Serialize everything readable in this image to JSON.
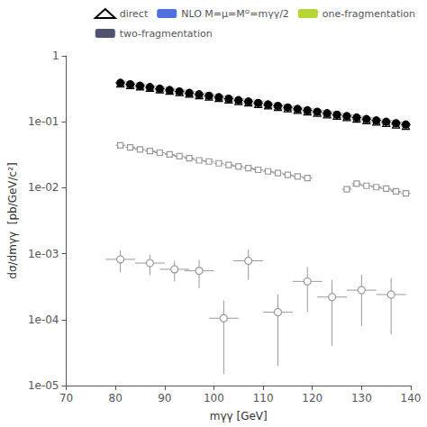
{
  "chart_data": {
    "type": "scatter",
    "xlabel": "mγγ [GeV]",
    "ylabel": "dσ/dmγγ  [pb/GeV/c²]",
    "log": "y",
    "xlim": [
      70,
      140
    ],
    "xticks": [
      70,
      80,
      90,
      100,
      110,
      120,
      130,
      140
    ],
    "ylim": [
      1e-05,
      1
    ],
    "yticks": [
      {
        "value": 1e-05,
        "label": "1e-05"
      },
      {
        "value": 0.0001,
        "label": "1e-04"
      },
      {
        "value": 0.001,
        "label": "1e-03"
      },
      {
        "value": 0.01,
        "label": "1e-02"
      },
      {
        "value": 0.1,
        "label": "1e-01"
      },
      1
    ],
    "grid": false,
    "legend": "upper right",
    "series": [
      {
        "type": "line",
        "color": "#bbbbbb",
        "line_style": "solid",
        "x": [
          81,
          83,
          85,
          87,
          89,
          91,
          93,
          95,
          97,
          99,
          101,
          103,
          105,
          107,
          109,
          111,
          113,
          115,
          117,
          119,
          121,
          123,
          125,
          127,
          129,
          131,
          133,
          135,
          137,
          139
        ],
        "values": [
          0.42,
          0.4,
          0.38,
          0.362,
          0.344,
          0.327,
          0.311,
          0.296,
          0.282,
          0.268,
          0.255,
          0.242,
          0.23,
          0.219,
          0.208,
          0.198,
          0.188,
          0.178,
          0.17,
          0.161,
          0.153,
          0.146,
          0.138,
          0.132,
          0.125,
          0.119,
          0.113,
          0.108,
          0.102,
          0.098
        ]
      },
      {
        "type": "line",
        "color": "#bbbbbb",
        "line_style": "solid",
        "x": [
          81,
          83,
          85,
          87,
          89,
          91,
          93,
          95,
          97,
          99,
          101,
          103,
          105,
          107,
          109,
          111,
          113,
          115,
          117,
          119,
          121,
          123,
          125,
          127,
          129,
          131,
          133,
          135,
          137,
          139
        ],
        "values": [
          0.362,
          0.345,
          0.328,
          0.312,
          0.297,
          0.282,
          0.268,
          0.255,
          0.243,
          0.231,
          0.219,
          0.208,
          0.198,
          0.188,
          0.179,
          0.17,
          0.161,
          0.153,
          0.145,
          0.138,
          0.131,
          0.125,
          0.118,
          0.112,
          0.107,
          0.102,
          0.097,
          0.092,
          0.088,
          0.084
        ]
      },
      {
        "name": "direct",
        "type": "scatter",
        "color": "black",
        "marker": "triangle-open",
        "x": [
          81,
          83,
          85,
          87,
          89,
          91,
          93,
          95,
          97,
          99,
          101,
          103,
          105,
          107,
          109,
          111,
          113,
          115,
          117,
          119,
          121,
          123,
          125,
          127,
          129,
          131,
          133,
          135,
          137,
          139
        ],
        "values": [
          0.38,
          0.362,
          0.344,
          0.328,
          0.312,
          0.296,
          0.282,
          0.268,
          0.254,
          0.242,
          0.23,
          0.218,
          0.207,
          0.197,
          0.187,
          0.178,
          0.168,
          0.16,
          0.152,
          0.144,
          0.137,
          0.13,
          0.124,
          0.118,
          0.112,
          0.106,
          0.101,
          0.096,
          0.091,
          0.087
        ]
      },
      {
        "name": "NLO M=μ=Mᴼ=mγγ/2",
        "type": "scatter",
        "color": "black",
        "marker": "circle",
        "x": [
          81,
          83,
          85,
          87,
          89,
          91,
          93,
          95,
          97,
          99,
          101,
          103,
          105,
          107,
          109,
          111,
          113,
          115,
          117,
          119,
          121,
          123,
          125,
          127,
          129,
          131,
          133,
          135,
          137,
          139
        ],
        "values": [
          0.39,
          0.37,
          0.352,
          0.335,
          0.318,
          0.303,
          0.288,
          0.274,
          0.261,
          0.248,
          0.236,
          0.224,
          0.213,
          0.203,
          0.193,
          0.183,
          0.174,
          0.165,
          0.157,
          0.149,
          0.142,
          0.135,
          0.128,
          0.122,
          0.116,
          0.11,
          0.105,
          0.1,
          0.095,
          0.091
        ],
        "xerr": [
          1,
          1,
          1,
          1,
          1,
          1,
          1,
          1,
          1,
          1,
          1,
          1,
          1,
          1,
          1,
          1,
          1,
          1,
          1,
          1,
          1,
          1,
          1,
          1,
          1,
          1,
          1,
          1,
          1,
          1
        ]
      },
      {
        "name": "one-fragmentation",
        "type": "line",
        "color": "#999999",
        "marker": "square-open",
        "line_style": "dashed",
        "x": [
          81,
          83,
          85,
          87,
          89,
          91,
          93,
          95,
          97,
          99
        ],
        "values": [
          0.044,
          0.041,
          0.038,
          0.036,
          0.034,
          0.032,
          0.03,
          0.028,
          0.026,
          0.025
        ],
        "xerr": 1.0
      },
      {
        "name": "one-fragmentation",
        "type": "line",
        "color": "#999999",
        "marker": "square-open",
        "line_style": "dashed",
        "x": [
          101,
          103,
          105,
          107,
          109,
          111,
          113,
          115,
          117,
          119
        ],
        "values": [
          0.0235,
          0.0222,
          0.021,
          0.0198,
          0.0187,
          0.0177,
          0.0167,
          0.0157,
          0.0148,
          0.014
        ],
        "xerr": 1.0
      },
      {
        "name": "one-fragmentation",
        "type": "line",
        "color": "#999999",
        "marker": "square-open",
        "line_style": "dashed",
        "x": [
          127,
          129,
          131,
          133,
          135,
          137,
          139
        ],
        "values": [
          0.0095,
          0.0115,
          0.0107,
          0.0102,
          0.0097,
          0.0088,
          0.0082
        ],
        "xerr": 1.0
      },
      {
        "name": "two-fragmentation",
        "type": "scatter",
        "color": "#999999",
        "marker": "circle-open",
        "x": [
          81,
          87,
          92,
          97,
          102,
          107,
          113,
          119,
          124,
          130,
          136
        ],
        "values": [
          0.00082,
          0.00072,
          0.00058,
          0.00055,
          0.000105,
          0.00078,
          0.00013,
          0.00038,
          0.00022,
          0.00028,
          0.00024
        ],
        "xerr": [
          3,
          3,
          3,
          3,
          3,
          3,
          3,
          3,
          3,
          3,
          3
        ],
        "yerr_lo": [
          0.0003,
          0.00025,
          0.0002,
          0.00025,
          9e-05,
          0.00038,
          0.00011,
          0.00025,
          0.00018,
          0.0002,
          0.00018
        ],
        "yerr_hi": [
          0.0003,
          0.00025,
          0.0002,
          0.00025,
          9e-05,
          0.00038,
          0.00011,
          0.00025,
          0.00018,
          0.0002,
          0.00018
        ]
      }
    ]
  }
}
